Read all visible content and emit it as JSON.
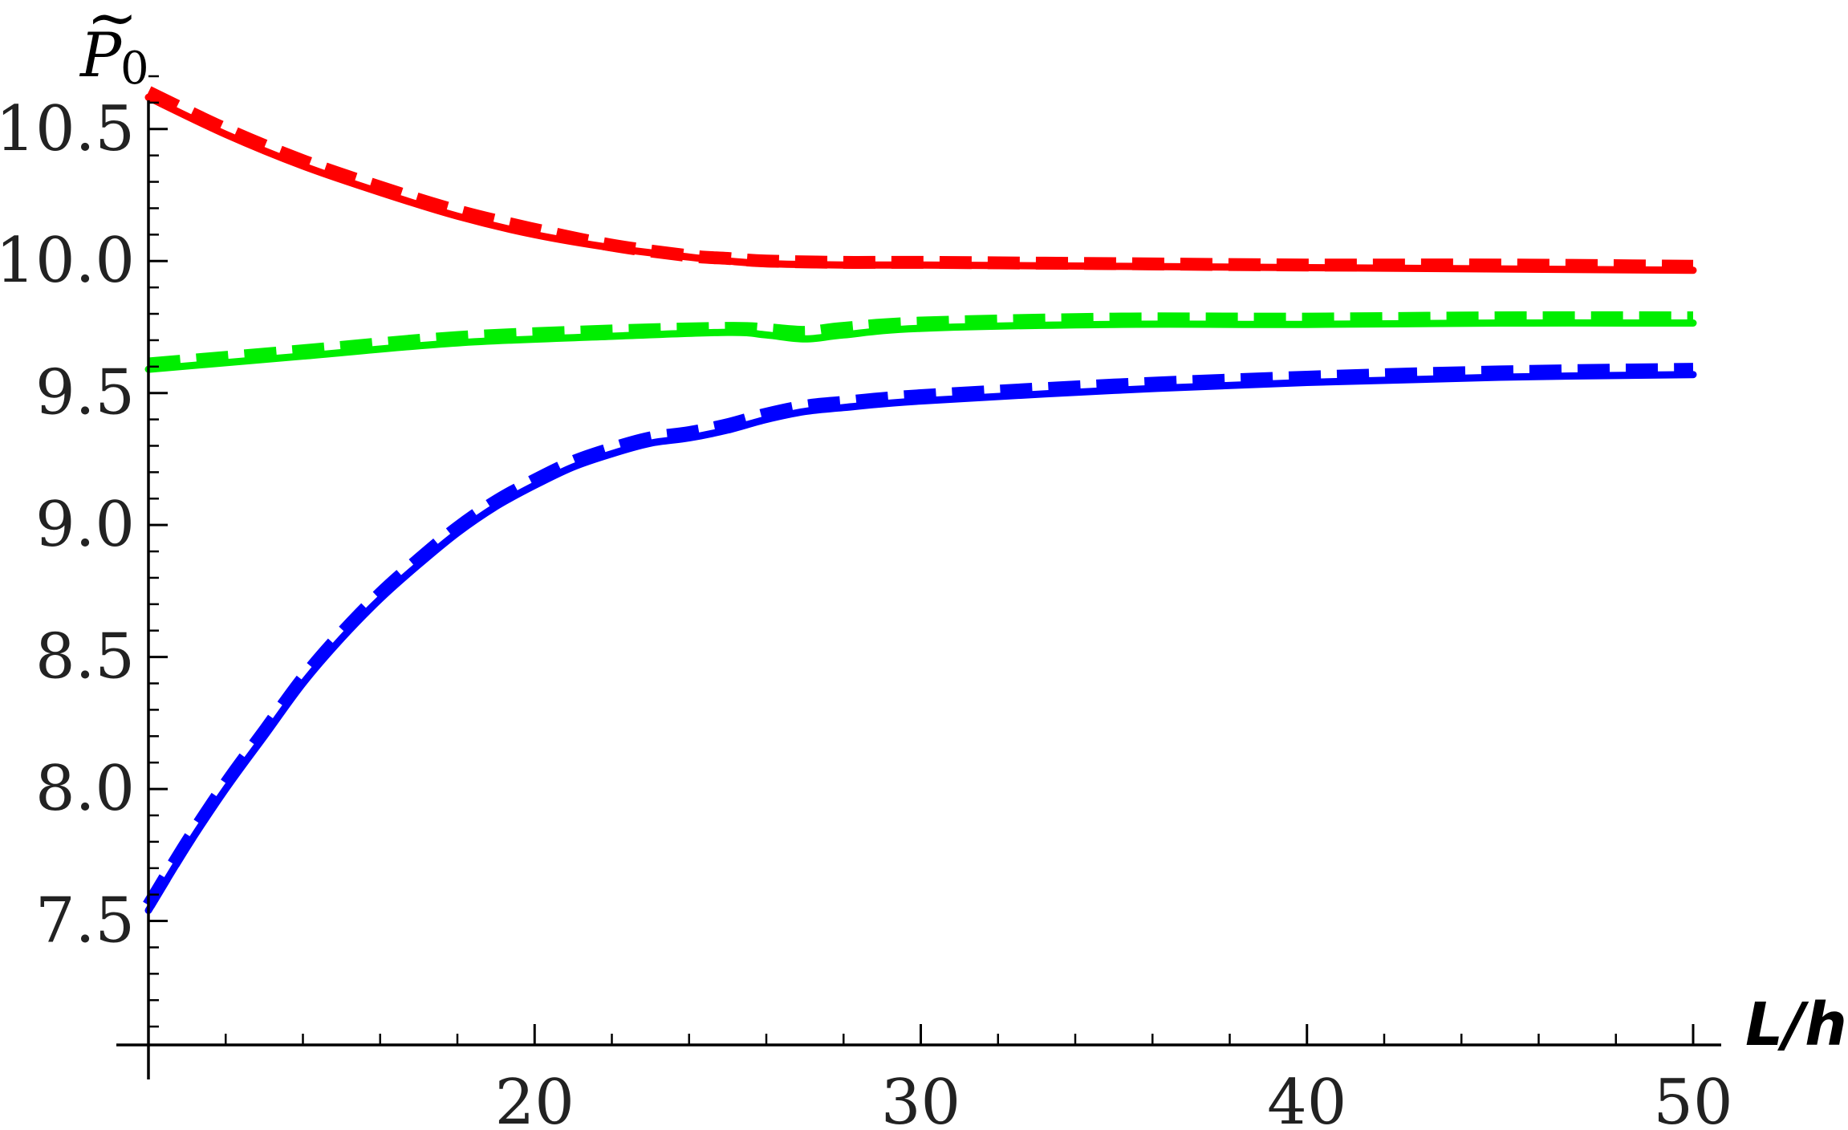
{
  "chart_data": {
    "type": "line",
    "title": "",
    "xlabel": "L/h",
    "ylabel": "P̃0",
    "ylabel_base": "P",
    "ylabel_accent": "~",
    "ylabel_subscript": "0",
    "xlim": [
      10,
      50
    ],
    "ylim": [
      7.0,
      10.7
    ],
    "x_ticks": [
      20,
      30,
      40,
      50
    ],
    "x_tick_labels": [
      "20",
      "30",
      "40",
      "50"
    ],
    "y_ticks": [
      7.5,
      8.0,
      8.5,
      9.0,
      9.5,
      10.0,
      10.5
    ],
    "y_tick_labels": [
      "7.5",
      "8.0",
      "8.5",
      "9.0",
      "9.5",
      "10.0",
      "10.5"
    ],
    "grid": false,
    "legend": "none",
    "series": [
      {
        "style": "solid",
        "color": "#ff0000",
        "x": [
          10,
          12,
          14,
          16,
          18,
          20,
          22,
          24,
          25,
          26,
          28,
          30,
          35,
          40,
          45,
          50
        ],
        "y": [
          10.62,
          10.48,
          10.36,
          10.26,
          10.17,
          10.1,
          10.05,
          10.015,
          10.0,
          9.99,
          9.985,
          9.985,
          9.98,
          9.975,
          9.97,
          9.965
        ]
      },
      {
        "style": "dashed",
        "color": "#ff0000",
        "x": [
          10,
          12,
          14,
          16,
          18,
          20,
          22,
          24,
          25,
          26,
          28,
          30,
          35,
          40,
          45,
          50
        ],
        "y": [
          10.64,
          10.5,
          10.38,
          10.28,
          10.19,
          10.12,
          10.06,
          10.02,
          10.01,
          10.0,
          9.995,
          9.995,
          9.99,
          9.985,
          9.985,
          9.98
        ]
      },
      {
        "style": "solid",
        "color": "#00ee00",
        "x": [
          10,
          14,
          18,
          22,
          25,
          26,
          27,
          28,
          30,
          35,
          40,
          45,
          50
        ],
        "y": [
          9.59,
          9.64,
          9.69,
          9.715,
          9.73,
          9.72,
          9.705,
          9.72,
          9.745,
          9.76,
          9.76,
          9.765,
          9.765
        ]
      },
      {
        "style": "dashed",
        "color": "#00ee00",
        "x": [
          10,
          14,
          18,
          22,
          25,
          26,
          27,
          28,
          30,
          35,
          40,
          45,
          50
        ],
        "y": [
          9.61,
          9.66,
          9.71,
          9.735,
          9.745,
          9.74,
          9.73,
          9.745,
          9.765,
          9.78,
          9.78,
          9.785,
          9.785
        ]
      },
      {
        "style": "solid",
        "color": "#0000ff",
        "x": [
          10,
          11,
          12,
          13,
          14,
          15,
          16,
          17,
          18,
          19,
          20,
          21,
          22,
          23,
          24,
          25,
          26,
          27,
          28,
          30,
          35,
          40,
          45,
          50
        ],
        "y": [
          7.54,
          7.78,
          8.0,
          8.2,
          8.4,
          8.57,
          8.72,
          8.85,
          8.97,
          9.07,
          9.15,
          9.22,
          9.27,
          9.31,
          9.33,
          9.36,
          9.4,
          9.43,
          9.445,
          9.47,
          9.51,
          9.54,
          9.56,
          9.57
        ]
      },
      {
        "style": "dashed",
        "color": "#0000ff",
        "x": [
          10,
          11,
          12,
          13,
          14,
          15,
          16,
          17,
          18,
          19,
          20,
          21,
          22,
          23,
          24,
          25,
          26,
          27,
          28,
          30,
          35,
          40,
          45,
          50
        ],
        "y": [
          7.56,
          7.8,
          8.02,
          8.22,
          8.42,
          8.59,
          8.74,
          8.87,
          8.99,
          9.09,
          9.17,
          9.24,
          9.29,
          9.33,
          9.35,
          9.38,
          9.42,
          9.45,
          9.465,
          9.49,
          9.53,
          9.56,
          9.58,
          9.59
        ]
      }
    ]
  }
}
